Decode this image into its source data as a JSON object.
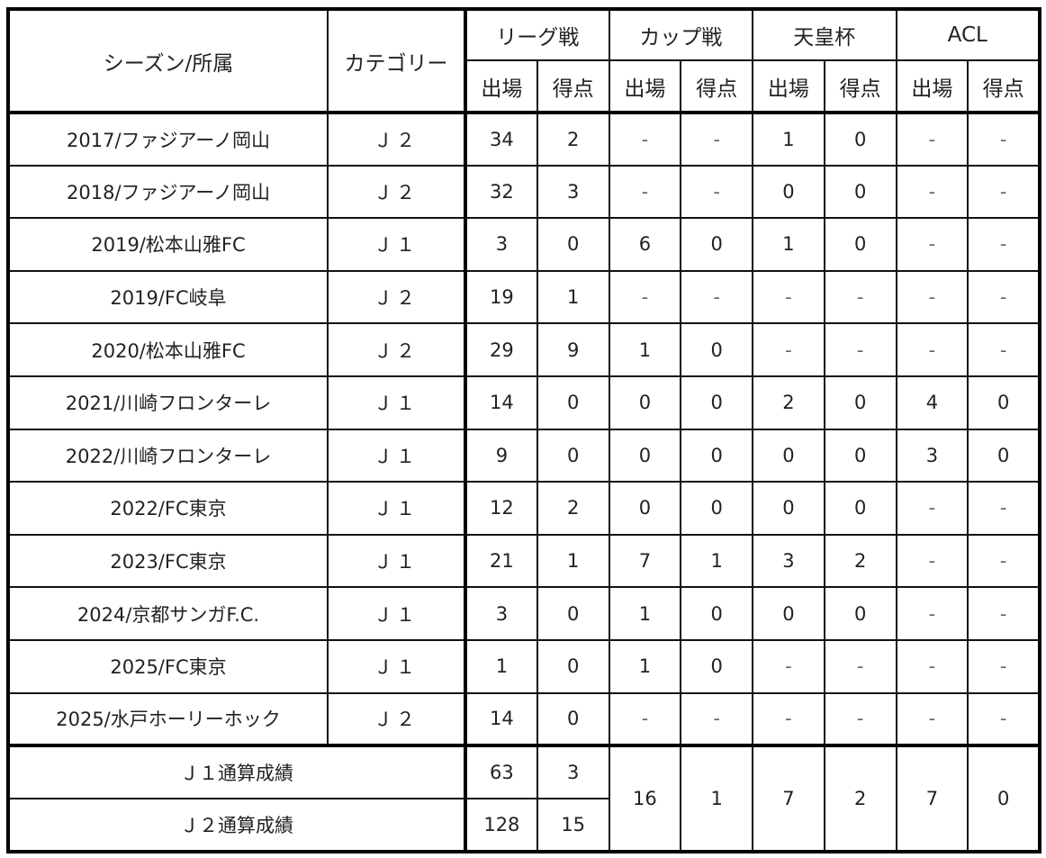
{
  "table": {
    "headers": {
      "season": "シーズン/所属",
      "category": "カテゴリー",
      "groups": [
        "リーグ戦",
        "カップ戦",
        "天皇杯",
        "ACL"
      ],
      "sub": [
        "出場",
        "得点",
        "出場",
        "得点",
        "出場",
        "得点",
        "出場",
        "得点"
      ]
    },
    "rows": [
      {
        "season": "2017/ファジアーノ岡山",
        "category": "Ｊ２",
        "values": [
          "34",
          "2",
          "-",
          "-",
          "1",
          "0",
          "-",
          "-"
        ]
      },
      {
        "season": "2018/ファジアーノ岡山",
        "category": "Ｊ２",
        "values": [
          "32",
          "3",
          "-",
          "-",
          "0",
          "0",
          "-",
          "-"
        ]
      },
      {
        "season": "2019/松本山雅FC",
        "category": "Ｊ１",
        "values": [
          "3",
          "0",
          "6",
          "0",
          "1",
          "0",
          "-",
          "-"
        ]
      },
      {
        "season": "2019/FC岐阜",
        "category": "Ｊ２",
        "values": [
          "19",
          "1",
          "-",
          "-",
          "-",
          "-",
          "-",
          "-"
        ]
      },
      {
        "season": "2020/松本山雅FC",
        "category": "Ｊ２",
        "values": [
          "29",
          "9",
          "1",
          "0",
          "-",
          "-",
          "-",
          "-"
        ]
      },
      {
        "season": "2021/川崎フロンターレ",
        "category": "Ｊ１",
        "values": [
          "14",
          "0",
          "0",
          "0",
          "2",
          "0",
          "4",
          "0"
        ]
      },
      {
        "season": "2022/川崎フロンターレ",
        "category": "Ｊ１",
        "values": [
          "9",
          "0",
          "0",
          "0",
          "0",
          "0",
          "3",
          "0"
        ]
      },
      {
        "season": "2022/FC東京",
        "category": "Ｊ１",
        "values": [
          "12",
          "2",
          "0",
          "0",
          "0",
          "0",
          "-",
          "-"
        ]
      },
      {
        "season": "2023/FC東京",
        "category": "Ｊ１",
        "values": [
          "21",
          "1",
          "7",
          "1",
          "3",
          "2",
          "-",
          "-"
        ]
      },
      {
        "season": "2024/京都サンガF.C.",
        "category": "Ｊ１",
        "values": [
          "3",
          "0",
          "1",
          "0",
          "0",
          "0",
          "-",
          "-"
        ]
      },
      {
        "season": "2025/FC東京",
        "category": "Ｊ１",
        "values": [
          "1",
          "0",
          "1",
          "0",
          "-",
          "-",
          "-",
          "-"
        ]
      },
      {
        "season": "2025/水戸ホーリーホック",
        "category": "Ｊ２",
        "values": [
          "14",
          "0",
          "-",
          "-",
          "-",
          "-",
          "-",
          "-"
        ]
      }
    ],
    "totals": {
      "j1": {
        "label": "Ｊ１通算成績",
        "league_apps": "63",
        "league_goals": "3"
      },
      "j2": {
        "label": "Ｊ２通算成績",
        "league_apps": "128",
        "league_goals": "15"
      },
      "combined": {
        "cup_apps": "16",
        "cup_goals": "1",
        "emperor_apps": "7",
        "emperor_goals": "2",
        "acl_apps": "7",
        "acl_goals": "0"
      }
    }
  }
}
